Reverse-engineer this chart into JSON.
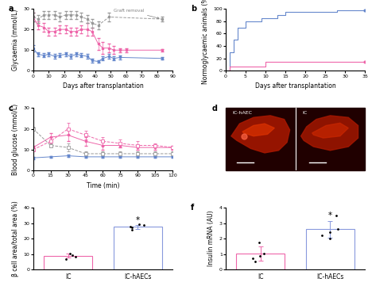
{
  "panel_a": {
    "title": "a",
    "xlabel": "Days after transplantation",
    "ylabel": "Glycaemia (mmol/L)",
    "xlim": [
      0,
      90
    ],
    "ylim": [
      0,
      30
    ],
    "yticks": [
      0,
      10,
      20,
      30
    ],
    "xticks": [
      0,
      10,
      20,
      30,
      40,
      50,
      60,
      70,
      80,
      90
    ],
    "graft_removal_label": "Graft removal",
    "blue_x": [
      0,
      3,
      7,
      10,
      14,
      17,
      21,
      24,
      28,
      31,
      35,
      38,
      42,
      45,
      49,
      52,
      56,
      83
    ],
    "blue_y": [
      11,
      8,
      7.5,
      8,
      7,
      7.5,
      8,
      7,
      8,
      7.5,
      7,
      5,
      4.5,
      6,
      7,
      6,
      6.5,
      6
    ],
    "blue_err": [
      1.5,
      1,
      1,
      1,
      1,
      1,
      1,
      1,
      1,
      1,
      1,
      1,
      0.5,
      1,
      1,
      1,
      1,
      0.5
    ],
    "pink_x": [
      0,
      3,
      7,
      10,
      14,
      17,
      21,
      24,
      28,
      31,
      35,
      38,
      42,
      45,
      49,
      52,
      56,
      60,
      83
    ],
    "pink_y": [
      26,
      22,
      21,
      19,
      19,
      20,
      20,
      19,
      19,
      20,
      20,
      19,
      13,
      11,
      11,
      10,
      10,
      10,
      10
    ],
    "pink_err": [
      2,
      2,
      2,
      2,
      2,
      2,
      2,
      2,
      2,
      2,
      3,
      2,
      3,
      3,
      2,
      2,
      1,
      1,
      0.5
    ],
    "gray_x": [
      0,
      3,
      7,
      10,
      14,
      17,
      21,
      24,
      28,
      31,
      35,
      38,
      42,
      49,
      83
    ],
    "gray_y": [
      26,
      25,
      27,
      27,
      27,
      26,
      27,
      27,
      27,
      26,
      25,
      23,
      22,
      26,
      25
    ],
    "gray_err": [
      2,
      2,
      2,
      2,
      2,
      2,
      2,
      2,
      2,
      2,
      2,
      2,
      2,
      2,
      1
    ],
    "blue_color": "#6688cc",
    "pink_color": "#ee66aa",
    "gray_color": "#999999"
  },
  "panel_b": {
    "title": "b",
    "xlabel": "Days after transplantation",
    "ylabel": "Normoglycaemic animals (%)",
    "xlim": [
      0,
      35
    ],
    "ylim": [
      0,
      100
    ],
    "yticks": [
      0,
      20,
      40,
      60,
      80,
      100
    ],
    "xticks": [
      0,
      5,
      10,
      15,
      20,
      25,
      30,
      35
    ],
    "blue_x": [
      0,
      1,
      2,
      3,
      5,
      9,
      13,
      15,
      18,
      28,
      35
    ],
    "blue_y": [
      0,
      30,
      50,
      70,
      80,
      85,
      90,
      95,
      95,
      97,
      97
    ],
    "pink_x": [
      0,
      1,
      2,
      9,
      10,
      35
    ],
    "pink_y": [
      0,
      7,
      7,
      7,
      15,
      15
    ],
    "blue_color": "#6688cc",
    "pink_color": "#ee66aa"
  },
  "panel_c": {
    "title": "c",
    "xlabel": "Time (min)",
    "ylabel": "Blood glucose (mmol/L)",
    "xlim": [
      0,
      120
    ],
    "ylim": [
      0,
      30
    ],
    "yticks": [
      0,
      10,
      20,
      30
    ],
    "xticks": [
      0,
      15,
      30,
      45,
      60,
      75,
      90,
      105,
      120
    ],
    "blue_solid_x": [
      0,
      15,
      30,
      45,
      60,
      75,
      90,
      105,
      120
    ],
    "blue_solid_y": [
      6,
      6.5,
      7,
      6.5,
      6.5,
      6.5,
      6.5,
      6.5,
      6.5
    ],
    "blue_solid_err": [
      0.5,
      0.5,
      0.5,
      0.5,
      0.5,
      0.5,
      0.5,
      0.5,
      0.5
    ],
    "pink_solid_x": [
      0,
      15,
      30,
      45,
      60,
      75,
      90,
      105,
      120
    ],
    "pink_solid_y": [
      11,
      16,
      17,
      14,
      12,
      12,
      11,
      11,
      11
    ],
    "pink_solid_err": [
      1,
      2,
      3,
      2,
      2,
      1,
      1,
      1,
      1
    ],
    "gray_dashed_x": [
      0,
      15,
      30,
      45,
      60,
      75,
      90,
      105,
      120
    ],
    "gray_dashed_y": [
      20,
      12,
      11,
      8,
      8,
      8,
      8,
      8,
      8
    ],
    "gray_dashed_err": [
      1,
      1,
      2,
      1,
      1,
      1,
      1,
      1,
      1
    ],
    "pink_dashed_x": [
      0,
      15,
      30,
      45,
      60,
      75,
      90,
      105,
      120
    ],
    "pink_dashed_y": [
      10,
      14,
      20,
      17,
      14,
      13,
      12,
      12,
      11
    ],
    "pink_dashed_err": [
      1,
      2,
      3,
      2,
      2,
      2,
      2,
      1,
      1
    ],
    "blue_color": "#6688cc",
    "pink_color": "#ee66aa",
    "gray_color": "#999999"
  },
  "panel_d": {
    "title": "d",
    "label_left": "IC-hAEC",
    "label_right": "IC",
    "bg_color": "#200000"
  },
  "panel_e": {
    "title": "e",
    "xlabel_left": "IC",
    "xlabel_right": "IC-hAECs",
    "ylabel": "β cell area/total area (%)",
    "ylim": [
      0,
      40
    ],
    "yticks": [
      0,
      10,
      20,
      30,
      40
    ],
    "bar_ic_height": 9.0,
    "bar_ic_err": 1.2,
    "bar_ichAEC_height": 27.5,
    "bar_ichAEC_err": 1.2,
    "ic_edge_color": "#ee66aa",
    "ichAEC_edge_color": "#8899dd",
    "dots_ic": [
      7.0,
      8.5,
      9.5,
      10.5
    ],
    "dots_ichAEC": [
      25.5,
      27.0,
      27.5,
      28.5,
      29.5
    ],
    "star": "*"
  },
  "panel_f": {
    "title": "f",
    "xlabel_left": "IC",
    "xlabel_right": "IC-hAECs",
    "ylabel": "Insulin mRNA (AU)",
    "ylim": [
      0,
      4
    ],
    "yticks": [
      0,
      1,
      2,
      3,
      4
    ],
    "bar_ic_height": 1.05,
    "bar_ic_err": 0.45,
    "bar_ichAEC_height": 2.6,
    "bar_ichAEC_err": 0.55,
    "ic_edge_color": "#ee66aa",
    "ichAEC_edge_color": "#8899dd",
    "dots_ic": [
      0.55,
      0.75,
      0.9,
      1.05,
      1.75
    ],
    "dots_ichAEC": [
      2.0,
      2.2,
      2.4,
      2.6,
      3.5
    ],
    "star": "*"
  },
  "figure_bg": "#ffffff",
  "font_size": 5.5,
  "label_font_size": 7
}
